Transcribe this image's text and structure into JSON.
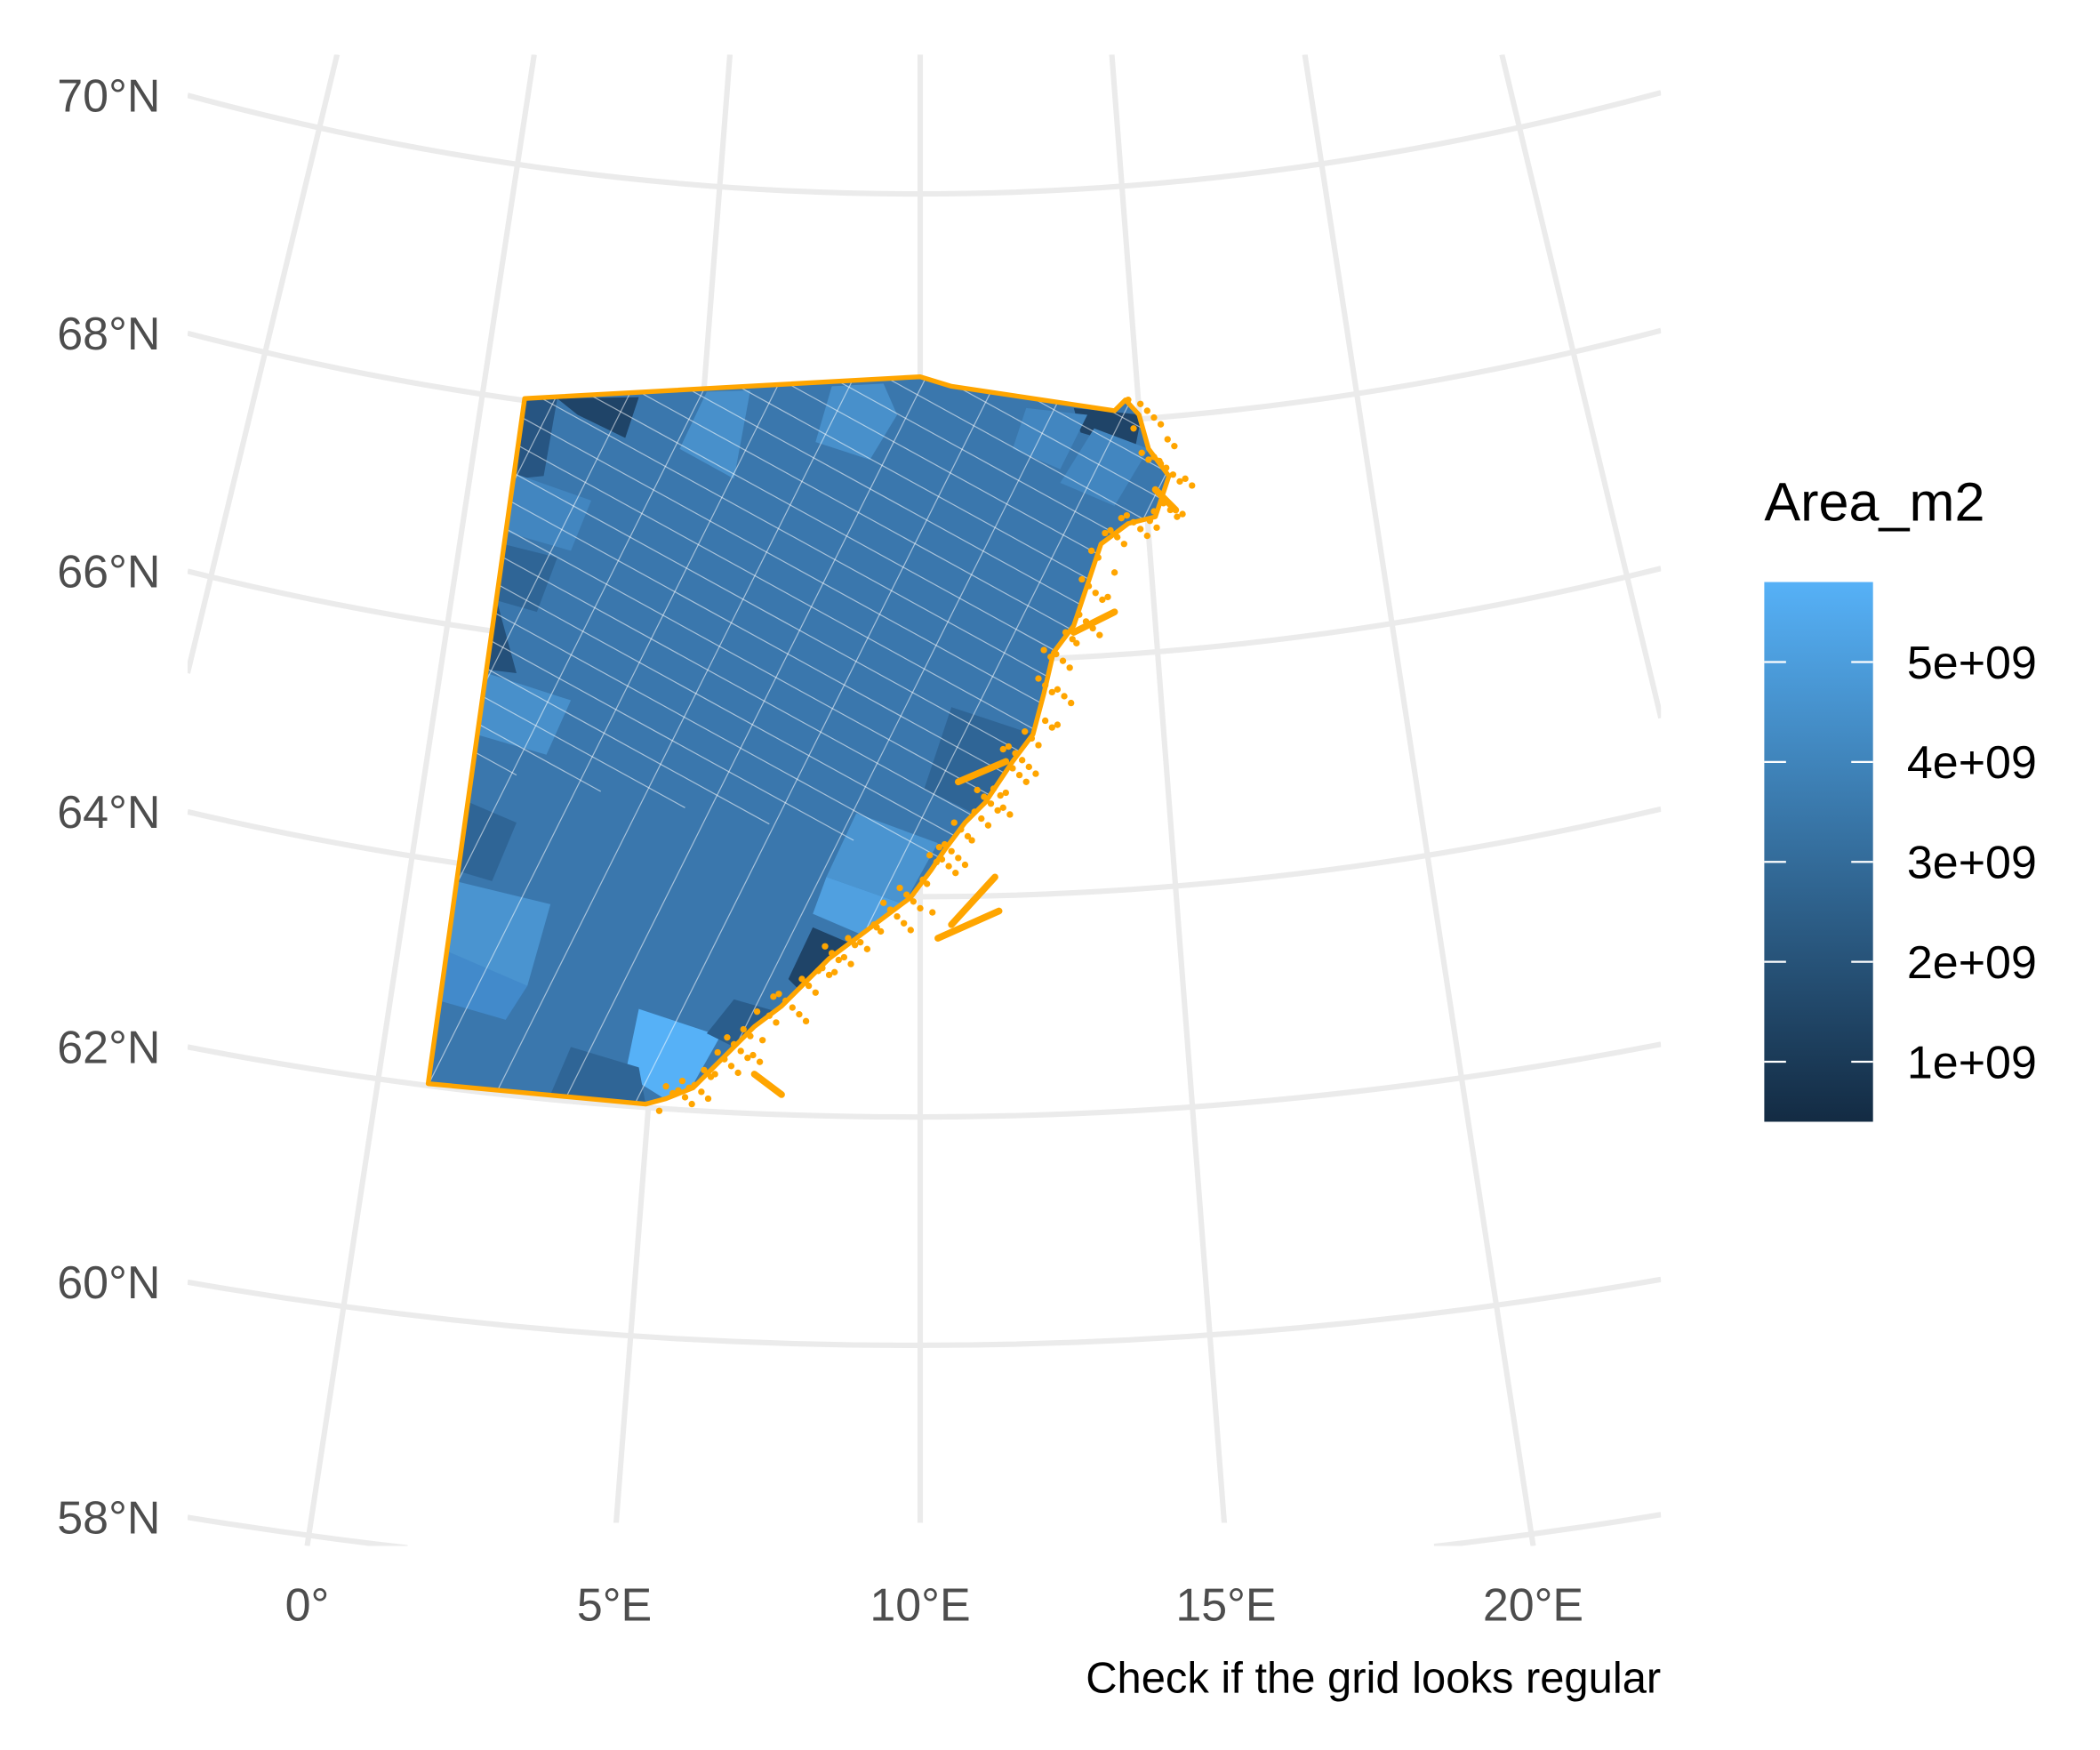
{
  "map": {
    "latitude_labels": [
      "70°N",
      "68°N",
      "66°N",
      "64°N",
      "62°N",
      "60°N",
      "58°N"
    ],
    "longitude_labels": [
      "0°",
      "5°E",
      "10°E",
      "15°E",
      "20°E"
    ],
    "caption": "Check if the grid looks regular",
    "legend": {
      "title": "Area_m2",
      "lim": [
        400000000,
        5800000000
      ],
      "ticks": [
        {
          "value": 1000000000,
          "label": "1e+09"
        },
        {
          "value": 2000000000,
          "label": "2e+09"
        },
        {
          "value": 3000000000,
          "label": "3e+09"
        },
        {
          "value": 4000000000,
          "label": "4e+09"
        },
        {
          "value": 5000000000,
          "label": "5e+09"
        }
      ],
      "colors": [
        "#132B43",
        "#56B1F7"
      ]
    }
  }
}
